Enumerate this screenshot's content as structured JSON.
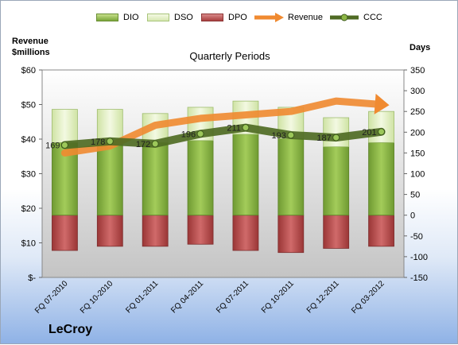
{
  "legend": {
    "dio": "DIO",
    "dso": "DSO",
    "dpo": "DPO",
    "revenue": "Revenue",
    "ccc": "CCC"
  },
  "axes": {
    "left_title_line1": "Revenue",
    "left_title_line2": "$millions",
    "right_title": "Days"
  },
  "chart_title": "Quarterly Periods",
  "company": "LeCroy",
  "colors": {
    "dio": "#8db646",
    "dso": "#e4efc8",
    "dpo": "#b54a4a",
    "revenue": "#f08a30",
    "ccc": "#4f6b24",
    "plot_bg": "#d0d0d0"
  },
  "chart_data": {
    "type": "bar",
    "categories": [
      "FQ 07-2010",
      "FQ 10-2010",
      "FQ 01-2011",
      "FQ 04-2011",
      "FQ 07-2011",
      "FQ 10-2011",
      "FQ 12-2011",
      "FQ 03-2012"
    ],
    "series": [
      {
        "name": "DIO",
        "axis": "right",
        "stacked": true,
        "values": [
          175,
          170,
          175,
          180,
          195,
          185,
          165,
          175
        ]
      },
      {
        "name": "DSO",
        "axis": "right",
        "stacked": true,
        "values": [
          80,
          85,
          70,
          80,
          80,
          75,
          70,
          75
        ]
      },
      {
        "name": "DPO",
        "axis": "right",
        "stacked": false,
        "values": [
          -85,
          -75,
          -75,
          -70,
          -85,
          -90,
          -80,
          -75
        ]
      },
      {
        "name": "Revenue",
        "axis": "left",
        "type": "line",
        "values": [
          36,
          38,
          44,
          46,
          47,
          48,
          51,
          50
        ]
      },
      {
        "name": "CCC",
        "axis": "right",
        "type": "line",
        "values": [
          169,
          178,
          172,
          196,
          211,
          193,
          187,
          201
        ]
      }
    ],
    "ccc_labels": [
      "169",
      "178",
      "172",
      "196",
      "211",
      "193",
      "187",
      "201"
    ],
    "left_axis": {
      "min": 0,
      "max": 60,
      "step": 10,
      "ticks": [
        "$-",
        "$10",
        "$20",
        "$30",
        "$40",
        "$50",
        "$60"
      ]
    },
    "right_axis": {
      "min": -150,
      "max": 350,
      "step": 50,
      "ticks": [
        "-150",
        "-100",
        "-50",
        "0",
        "50",
        "100",
        "150",
        "200",
        "250",
        "300",
        "350"
      ]
    }
  }
}
